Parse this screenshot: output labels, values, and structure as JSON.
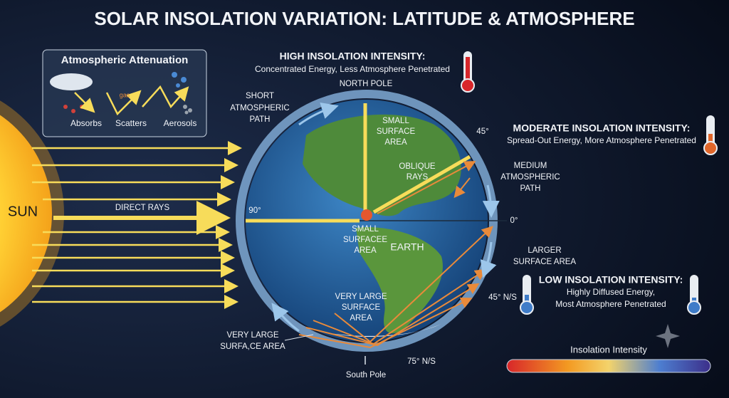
{
  "title": "SOLAR INSOLATION VARIATION: LATITUDE & ATMOSPHERE",
  "attenuation": {
    "title": "Atmospheric Attenuation",
    "gas": "gas",
    "items": [
      "Absorbs",
      "Scatters",
      "Aerosols"
    ]
  },
  "panels": {
    "high": {
      "heading": "HIGH INSOLATION INTENSITY:",
      "lines": [
        "Concentrated Energy, Less Atmosphere Penetrated"
      ]
    },
    "moderate": {
      "heading": "MODERATE INSOLATION INTENSITY:",
      "lines": [
        "Spread-Out Energy, More Atmosphere Penetrated"
      ]
    },
    "low": {
      "heading": "LOW INSOLATION INTENSITY:",
      "lines": [
        "Highly Diffused Energy,",
        "Most Atmosphere Penetrated"
      ]
    }
  },
  "labels": {
    "sun": "SUN",
    "direct_rays": "DIRECT RAYS",
    "deg_90": "90°",
    "north_pole": "NORTH POLE",
    "south_pole": "South Pole",
    "deg_45": "45°",
    "deg_0": "0°",
    "deg_45_ns": "45° N/S",
    "deg_75_ns": "75° N/S",
    "earth": "EARTH",
    "short_path": [
      "SHORT",
      "ATMOSPHERIC",
      "PATH"
    ],
    "medium_path": [
      "MEDIUM",
      "ATMOSPHERIC",
      "PATH"
    ],
    "small_area_top": [
      "SMALL",
      "SURFACE",
      "AREA"
    ],
    "oblique_rays": [
      "OBLIQUE",
      "RAYS"
    ],
    "small_area_center": [
      "SMALL",
      "SURFACEE",
      "AREA"
    ],
    "larger_area": [
      "LARGER",
      "SURFACE AREA"
    ],
    "very_large_area": [
      "VERY LARGE",
      "SURFACE",
      "AREA"
    ],
    "very_large_area_left": [
      "VERY LARGE",
      "SURFA,CE AREA"
    ]
  },
  "legend": {
    "title": "Insolation Intensity"
  }
}
